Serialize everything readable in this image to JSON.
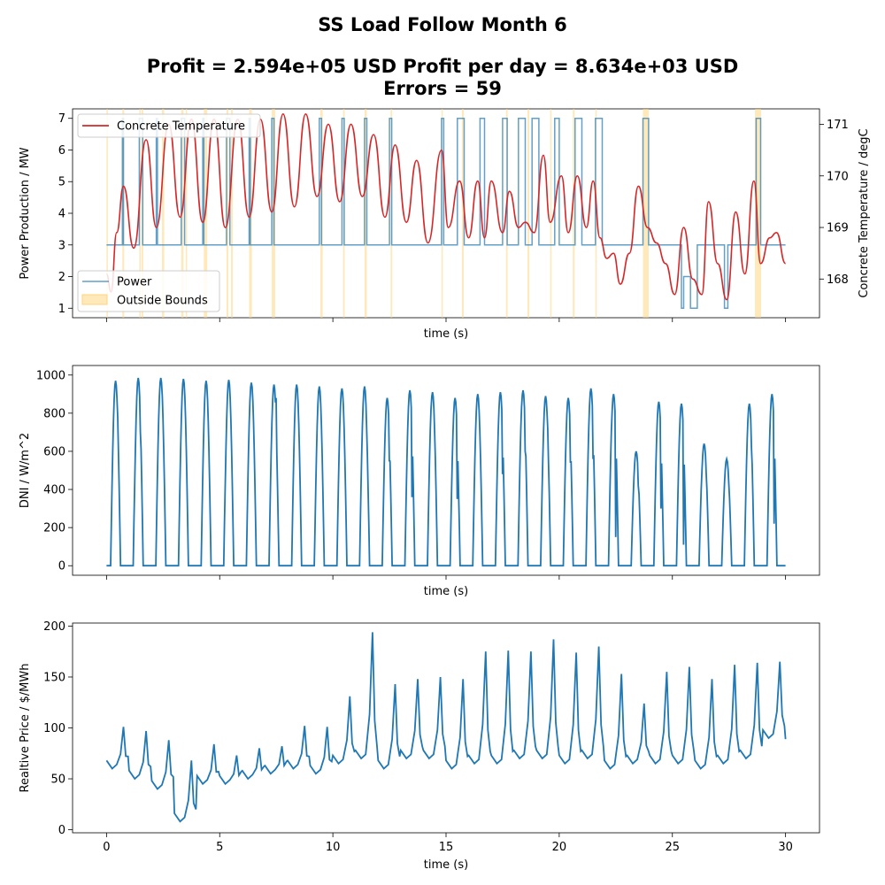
{
  "figure": {
    "title_line1": "SS Load Follow Month 6",
    "title_line2": "Profit = 2.594e+05 USD  Profit per day = 8.634e+03 USD",
    "title_line3": "Errors = 59"
  },
  "colors": {
    "power": "#1f77b4",
    "concrete_temperature": "#d62728",
    "outside_bounds": "#ffd580",
    "dni": "#1f77b4",
    "price": "#1f77b4"
  },
  "chart_data": [
    {
      "type": "line",
      "panel": "top",
      "xlabel": "time (s)",
      "ylabel": "Power Production / MW",
      "y2label": "Concrete Temperature / degC",
      "xlim": [
        -1.5,
        31.5
      ],
      "ylim": [
        0.7,
        7.3
      ],
      "y2lim": [
        167.25,
        171.3
      ],
      "x_ticks": [
        0,
        5,
        10,
        15,
        20,
        25,
        30
      ],
      "x_tick_labels_shown": false,
      "y_ticks": [
        1,
        2,
        3,
        4,
        5,
        6,
        7
      ],
      "y2_ticks": [
        168,
        169,
        170,
        171
      ],
      "legend_upper_left": [
        "Concrete Temperature"
      ],
      "legend_lower_left": [
        "Power",
        "Outside Bounds"
      ],
      "outside_bounds_intervals": [
        [
          0.0,
          0.05
        ],
        [
          0.7,
          0.78
        ],
        [
          1.45,
          1.5
        ],
        [
          1.55,
          1.62
        ],
        [
          2.45,
          2.55
        ],
        [
          3.3,
          3.4
        ],
        [
          3.5,
          3.55
        ],
        [
          4.3,
          4.45
        ],
        [
          5.3,
          5.38
        ],
        [
          5.5,
          5.58
        ],
        [
          6.3,
          6.42
        ],
        [
          7.3,
          7.45
        ],
        [
          9.45,
          9.55
        ],
        [
          10.45,
          10.52
        ],
        [
          11.4,
          11.5
        ],
        [
          12.55,
          12.62
        ],
        [
          14.8,
          14.85
        ],
        [
          15.7,
          15.78
        ],
        [
          17.65,
          17.72
        ],
        [
          18.6,
          18.68
        ],
        [
          19.6,
          19.66
        ],
        [
          20.6,
          20.68
        ],
        [
          21.6,
          21.66
        ],
        [
          23.7,
          23.95
        ],
        [
          28.65,
          28.92
        ]
      ],
      "series": [
        {
          "name": "Power",
          "style": "step",
          "axis": "left",
          "x": [
            0.0,
            0.7,
            0.75,
            1.45,
            1.6,
            2.2,
            2.25,
            3.3,
            3.45,
            4.25,
            4.3,
            5.3,
            5.45,
            6.3,
            6.35,
            7.3,
            7.4,
            9.4,
            9.5,
            10.4,
            10.5,
            11.4,
            11.5,
            12.5,
            12.6,
            14.8,
            14.9,
            15.5,
            15.8,
            16.5,
            16.7,
            17.5,
            17.7,
            18.2,
            18.5,
            18.8,
            19.1,
            19.8,
            20.0,
            20.7,
            21.0,
            21.6,
            21.9,
            23.7,
            23.95,
            25.4,
            25.5,
            25.8,
            26.1,
            27.3,
            27.45,
            28.7,
            28.9,
            30.0
          ],
          "values": [
            3,
            7,
            3,
            7,
            3,
            7,
            3,
            7,
            3,
            7,
            3,
            7,
            3,
            7,
            3,
            7,
            3,
            7,
            3,
            7,
            3,
            7,
            3,
            7,
            3,
            7,
            3,
            7,
            3,
            7,
            3,
            7,
            3,
            7,
            3,
            7,
            3,
            7,
            3,
            7,
            3,
            7,
            3,
            7,
            3,
            1,
            2,
            1,
            3,
            1,
            3,
            7,
            3,
            3
          ]
        },
        {
          "name": "Concrete Temperature",
          "style": "line",
          "axis": "right",
          "x": [
            0.0,
            0.2,
            0.45,
            0.75,
            1.2,
            1.75,
            2.2,
            2.75,
            3.25,
            3.75,
            4.25,
            4.75,
            5.25,
            5.8,
            6.3,
            6.8,
            7.3,
            7.8,
            8.3,
            8.8,
            9.3,
            9.8,
            10.3,
            10.8,
            11.3,
            11.8,
            12.3,
            12.75,
            13.25,
            13.7,
            14.2,
            14.8,
            15.1,
            15.6,
            16.0,
            16.4,
            16.7,
            17.0,
            17.5,
            17.8,
            18.2,
            18.5,
            18.9,
            19.3,
            19.6,
            20.1,
            20.4,
            20.8,
            21.2,
            21.5,
            21.8,
            22.1,
            22.4,
            22.7,
            23.1,
            23.5,
            23.9,
            24.3,
            24.7,
            25.1,
            25.5,
            25.9,
            26.3,
            26.6,
            27.0,
            27.4,
            27.8,
            28.2,
            28.6,
            28.9,
            29.3,
            29.6,
            30.0
          ],
          "values": [
            168.1,
            167.75,
            168.9,
            169.8,
            168.6,
            170.7,
            169.0,
            171.0,
            169.2,
            171.1,
            169.1,
            171.1,
            169.0,
            171.1,
            169.2,
            171.1,
            169.3,
            171.2,
            169.4,
            171.2,
            169.6,
            171.0,
            169.5,
            171.0,
            169.6,
            170.8,
            169.2,
            170.6,
            169.1,
            170.3,
            168.7,
            170.5,
            169.0,
            169.9,
            168.8,
            169.9,
            168.8,
            169.9,
            168.9,
            169.7,
            169.0,
            169.1,
            168.9,
            170.4,
            169.1,
            170.0,
            168.9,
            170.0,
            169.0,
            169.9,
            168.8,
            168.4,
            168.5,
            167.9,
            168.5,
            169.8,
            169.0,
            168.7,
            168.3,
            167.7,
            169.0,
            168.0,
            167.7,
            169.5,
            168.3,
            167.6,
            169.3,
            168.1,
            169.9,
            168.3,
            168.8,
            168.9,
            168.3
          ]
        }
      ]
    },
    {
      "type": "line",
      "panel": "middle",
      "xlabel": "time (s)",
      "ylabel": "DNI / W/m^2",
      "xlim": [
        -1.5,
        31.5
      ],
      "ylim": [
        -50,
        1050
      ],
      "x_ticks": [
        0,
        5,
        10,
        15,
        20,
        25,
        30
      ],
      "x_tick_labels_shown": false,
      "y_ticks": [
        0,
        200,
        400,
        600,
        800,
        1000
      ],
      "series": [
        {
          "name": "DNI",
          "daily_peaks": [
            970,
            985,
            985,
            980,
            970,
            975,
            960,
            950,
            950,
            940,
            930,
            940,
            880,
            920,
            910,
            880,
            900,
            910,
            920,
            890,
            880,
            930,
            900,
            600,
            860,
            850,
            640,
            560,
            850,
            900,
            180
          ],
          "daily_dips": [
            780,
            700,
            0,
            0,
            0,
            0,
            0,
            880,
            0,
            0,
            0,
            720,
            550,
            360,
            700,
            350,
            0,
            480,
            600,
            720,
            540,
            560,
            150,
            420,
            300,
            110,
            480,
            420,
            620,
            220,
            0
          ]
        }
      ]
    },
    {
      "type": "line",
      "panel": "bottom",
      "xlabel": "time (s)",
      "ylabel": "Realtive Price / $/MWh",
      "xlim": [
        -1.5,
        31.5
      ],
      "ylim": [
        -3,
        203
      ],
      "x_ticks": [
        0,
        5,
        10,
        15,
        20,
        25,
        30
      ],
      "x_tick_labels_shown": true,
      "y_ticks": [
        0,
        50,
        100,
        150,
        200
      ],
      "series": [
        {
          "name": "Price",
          "daily_peaks": [
            101,
            97,
            88,
            68,
            84,
            73,
            80,
            82,
            102,
            101,
            131,
            194,
            143,
            148,
            150,
            148,
            175,
            176,
            175,
            187,
            174,
            180,
            153,
            124,
            155,
            160,
            148,
            162,
            164,
            165
          ],
          "daily_base": [
            60,
            50,
            40,
            8,
            45,
            45,
            50,
            55,
            60,
            55,
            65,
            70,
            60,
            70,
            70,
            60,
            65,
            65,
            70,
            70,
            65,
            70,
            60,
            65,
            65,
            65,
            60,
            65,
            70,
            90
          ]
        }
      ]
    }
  ]
}
